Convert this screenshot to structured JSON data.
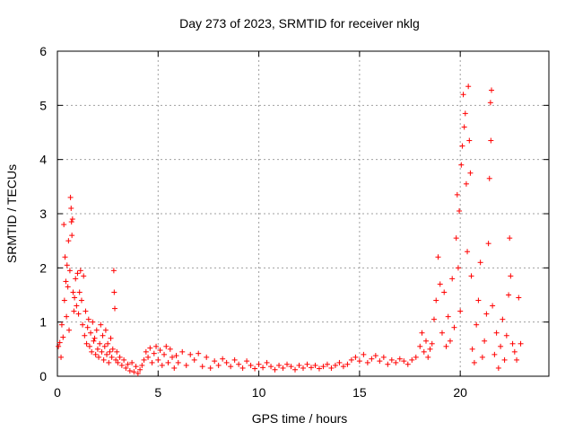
{
  "chart_data": {
    "type": "scatter",
    "title": "Day 273 of 2023, SRMTID for receiver nklg",
    "xlabel": "GPS time / hours",
    "ylabel": "SRMTID / TECUs",
    "xlim": [
      0,
      24.4
    ],
    "ylim": [
      0,
      6
    ],
    "xticks": [
      0,
      5,
      10,
      15,
      20
    ],
    "yticks": [
      0,
      1,
      2,
      3,
      4,
      5,
      6
    ],
    "xtick_labels": [
      "0",
      "5",
      "10",
      "15",
      "20"
    ],
    "ytick_labels": [
      "0",
      "1",
      "2",
      "3",
      "4",
      "5",
      "6"
    ],
    "grid": true,
    "marker": "+",
    "color": "#ff0000",
    "series": [
      {
        "name": "SRMTID",
        "points": [
          [
            0.05,
            0.55
          ],
          [
            0.12,
            0.62
          ],
          [
            0.18,
            0.35
          ],
          [
            0.22,
            0.95
          ],
          [
            0.28,
            0.72
          ],
          [
            0.32,
            2.8
          ],
          [
            0.35,
            1.4
          ],
          [
            0.38,
            2.2
          ],
          [
            0.42,
            1.75
          ],
          [
            0.45,
            1.1
          ],
          [
            0.48,
            2.05
          ],
          [
            0.52,
            1.65
          ],
          [
            0.55,
            2.5
          ],
          [
            0.58,
            0.85
          ],
          [
            0.62,
            1.95
          ],
          [
            0.65,
            3.3
          ],
          [
            0.68,
            3.1
          ],
          [
            0.7,
            2.85
          ],
          [
            0.72,
            2.6
          ],
          [
            0.75,
            2.9
          ],
          [
            0.78,
            1.55
          ],
          [
            0.82,
            1.2
          ],
          [
            0.85,
            1.45
          ],
          [
            0.9,
            1.8
          ],
          [
            0.95,
            1.3
          ],
          [
            1.0,
            1.9
          ],
          [
            1.05,
            1.15
          ],
          [
            1.1,
            1.55
          ],
          [
            1.15,
            1.95
          ],
          [
            1.2,
            1.4
          ],
          [
            1.25,
            0.95
          ],
          [
            1.3,
            1.85
          ],
          [
            1.35,
            0.75
          ],
          [
            1.4,
            1.2
          ],
          [
            1.45,
            0.6
          ],
          [
            1.5,
            0.9
          ],
          [
            1.55,
            1.05
          ],
          [
            1.6,
            0.55
          ],
          [
            1.65,
            0.8
          ],
          [
            1.7,
            0.45
          ],
          [
            1.75,
            1.0
          ],
          [
            1.8,
            0.65
          ],
          [
            1.85,
            0.7
          ],
          [
            1.9,
            0.4
          ],
          [
            1.95,
            0.85
          ],
          [
            2.0,
            0.5
          ],
          [
            2.05,
            0.35
          ],
          [
            2.1,
            0.6
          ],
          [
            2.15,
            0.95
          ],
          [
            2.2,
            0.45
          ],
          [
            2.25,
            0.75
          ],
          [
            2.3,
            0.3
          ],
          [
            2.35,
            0.55
          ],
          [
            2.4,
            0.85
          ],
          [
            2.45,
            0.4
          ],
          [
            2.5,
            0.6
          ],
          [
            2.55,
            0.25
          ],
          [
            2.6,
            0.45
          ],
          [
            2.65,
            0.7
          ],
          [
            2.7,
            0.35
          ],
          [
            2.75,
            0.5
          ],
          [
            2.8,
            1.95
          ],
          [
            2.82,
            1.55
          ],
          [
            2.85,
            1.25
          ],
          [
            2.9,
            0.3
          ],
          [
            2.95,
            0.45
          ],
          [
            3.0,
            0.25
          ],
          [
            3.1,
            0.35
          ],
          [
            3.2,
            0.2
          ],
          [
            3.3,
            0.3
          ],
          [
            3.4,
            0.15
          ],
          [
            3.5,
            0.22
          ],
          [
            3.6,
            0.1
          ],
          [
            3.7,
            0.25
          ],
          [
            3.8,
            0.08
          ],
          [
            3.9,
            0.18
          ],
          [
            4.0,
            0.05
          ],
          [
            4.1,
            0.12
          ],
          [
            4.2,
            0.2
          ],
          [
            4.3,
            0.3
          ],
          [
            4.4,
            0.45
          ],
          [
            4.5,
            0.35
          ],
          [
            4.6,
            0.52
          ],
          [
            4.7,
            0.25
          ],
          [
            4.8,
            0.42
          ],
          [
            4.9,
            0.55
          ],
          [
            5.0,
            0.3
          ],
          [
            5.1,
            0.48
          ],
          [
            5.2,
            0.2
          ],
          [
            5.3,
            0.4
          ],
          [
            5.4,
            0.55
          ],
          [
            5.5,
            0.25
          ],
          [
            5.6,
            0.5
          ],
          [
            5.7,
            0.35
          ],
          [
            5.8,
            0.15
          ],
          [
            5.9,
            0.38
          ],
          [
            6.0,
            0.25
          ],
          [
            6.2,
            0.45
          ],
          [
            6.4,
            0.2
          ],
          [
            6.6,
            0.4
          ],
          [
            6.8,
            0.3
          ],
          [
            7.0,
            0.42
          ],
          [
            7.2,
            0.18
          ],
          [
            7.4,
            0.35
          ],
          [
            7.6,
            0.15
          ],
          [
            7.8,
            0.28
          ],
          [
            8.0,
            0.2
          ],
          [
            8.2,
            0.32
          ],
          [
            8.4,
            0.25
          ],
          [
            8.6,
            0.18
          ],
          [
            8.8,
            0.3
          ],
          [
            9.0,
            0.22
          ],
          [
            9.2,
            0.15
          ],
          [
            9.4,
            0.28
          ],
          [
            9.6,
            0.2
          ],
          [
            9.8,
            0.14
          ],
          [
            10.0,
            0.22
          ],
          [
            10.2,
            0.16
          ],
          [
            10.4,
            0.25
          ],
          [
            10.6,
            0.18
          ],
          [
            10.8,
            0.12
          ],
          [
            11.0,
            0.2
          ],
          [
            11.2,
            0.15
          ],
          [
            11.4,
            0.22
          ],
          [
            11.6,
            0.18
          ],
          [
            11.8,
            0.12
          ],
          [
            12.0,
            0.2
          ],
          [
            12.2,
            0.15
          ],
          [
            12.4,
            0.22
          ],
          [
            12.6,
            0.16
          ],
          [
            12.8,
            0.2
          ],
          [
            13.0,
            0.14
          ],
          [
            13.2,
            0.18
          ],
          [
            13.4,
            0.22
          ],
          [
            13.6,
            0.15
          ],
          [
            13.8,
            0.2
          ],
          [
            14.0,
            0.25
          ],
          [
            14.2,
            0.18
          ],
          [
            14.4,
            0.22
          ],
          [
            14.6,
            0.3
          ],
          [
            14.8,
            0.35
          ],
          [
            15.0,
            0.28
          ],
          [
            15.2,
            0.4
          ],
          [
            15.4,
            0.25
          ],
          [
            15.6,
            0.32
          ],
          [
            15.8,
            0.38
          ],
          [
            16.0,
            0.28
          ],
          [
            16.2,
            0.35
          ],
          [
            16.4,
            0.22
          ],
          [
            16.6,
            0.3
          ],
          [
            16.8,
            0.25
          ],
          [
            17.0,
            0.32
          ],
          [
            17.2,
            0.28
          ],
          [
            17.4,
            0.22
          ],
          [
            17.6,
            0.3
          ],
          [
            17.8,
            0.35
          ],
          [
            18.0,
            0.55
          ],
          [
            18.1,
            0.8
          ],
          [
            18.2,
            0.45
          ],
          [
            18.3,
            0.65
          ],
          [
            18.4,
            0.35
          ],
          [
            18.5,
            0.5
          ],
          [
            18.6,
            0.6
          ],
          [
            18.7,
            1.05
          ],
          [
            18.8,
            1.4
          ],
          [
            18.9,
            2.2
          ],
          [
            19.0,
            1.7
          ],
          [
            19.1,
            0.8
          ],
          [
            19.2,
            1.55
          ],
          [
            19.3,
            0.55
          ],
          [
            19.4,
            1.1
          ],
          [
            19.5,
            0.65
          ],
          [
            19.6,
            1.8
          ],
          [
            19.7,
            0.9
          ],
          [
            19.8,
            2.55
          ],
          [
            19.85,
            3.35
          ],
          [
            19.9,
            2.0
          ],
          [
            19.95,
            3.05
          ],
          [
            20.0,
            1.2
          ],
          [
            20.05,
            3.9
          ],
          [
            20.1,
            4.25
          ],
          [
            20.15,
            5.2
          ],
          [
            20.2,
            4.6
          ],
          [
            20.25,
            4.85
          ],
          [
            20.3,
            3.55
          ],
          [
            20.35,
            2.3
          ],
          [
            20.4,
            5.35
          ],
          [
            20.45,
            4.35
          ],
          [
            20.5,
            3.75
          ],
          [
            20.55,
            1.85
          ],
          [
            20.6,
            0.5
          ],
          [
            20.7,
            0.25
          ],
          [
            20.8,
            0.95
          ],
          [
            20.9,
            1.4
          ],
          [
            21.0,
            2.1
          ],
          [
            21.1,
            0.35
          ],
          [
            21.2,
            0.65
          ],
          [
            21.3,
            1.15
          ],
          [
            21.4,
            2.45
          ],
          [
            21.45,
            3.65
          ],
          [
            21.5,
            5.05
          ],
          [
            21.52,
            4.35
          ],
          [
            21.55,
            5.28
          ],
          [
            21.6,
            1.3
          ],
          [
            21.7,
            0.4
          ],
          [
            21.8,
            0.8
          ],
          [
            21.9,
            0.15
          ],
          [
            22.0,
            0.55
          ],
          [
            22.1,
            1.05
          ],
          [
            22.2,
            0.3
          ],
          [
            22.3,
            0.75
          ],
          [
            22.4,
            1.5
          ],
          [
            22.45,
            2.55
          ],
          [
            22.5,
            1.85
          ],
          [
            22.6,
            0.6
          ],
          [
            22.7,
            0.45
          ],
          [
            22.8,
            0.3
          ],
          [
            22.9,
            1.45
          ],
          [
            23.0,
            0.6
          ]
        ]
      }
    ]
  }
}
